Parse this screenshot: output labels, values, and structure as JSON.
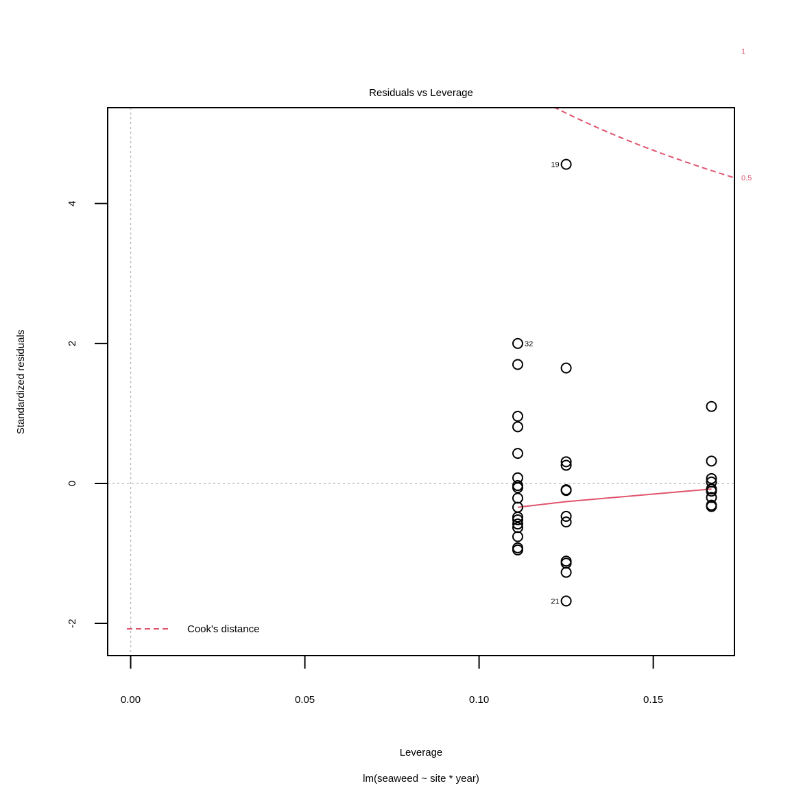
{
  "chart_data": {
    "type": "scatter",
    "title": "Residuals vs Leverage",
    "xlabel": "Leverage",
    "ylabel": "Standardized residuals",
    "subtitle": "lm(seaweed ~ site * year)",
    "xlim": [
      -0.0066,
      0.1733
    ],
    "ylim": [
      -2.46,
      5.37
    ],
    "x_ticks": [
      "0.00",
      "0.05",
      "0.10",
      "0.15"
    ],
    "y_ticks": [
      "-2",
      "0",
      "2",
      "4"
    ],
    "points": [
      {
        "x": 0.1111,
        "y": 2.0,
        "label": "32"
      },
      {
        "x": 0.1111,
        "y": 1.7
      },
      {
        "x": 0.1111,
        "y": 0.96
      },
      {
        "x": 0.1111,
        "y": 0.81
      },
      {
        "x": 0.1111,
        "y": 0.43
      },
      {
        "x": 0.1111,
        "y": 0.08
      },
      {
        "x": 0.1111,
        "y": -0.03
      },
      {
        "x": 0.1111,
        "y": -0.06
      },
      {
        "x": 0.1111,
        "y": -0.21
      },
      {
        "x": 0.1111,
        "y": -0.34
      },
      {
        "x": 0.1111,
        "y": -0.48
      },
      {
        "x": 0.1111,
        "y": -0.52
      },
      {
        "x": 0.1111,
        "y": -0.58
      },
      {
        "x": 0.1111,
        "y": -0.63
      },
      {
        "x": 0.1111,
        "y": -0.76
      },
      {
        "x": 0.1111,
        "y": -0.92
      },
      {
        "x": 0.1111,
        "y": -0.95
      },
      {
        "x": 0.125,
        "y": 4.56,
        "label": "19"
      },
      {
        "x": 0.125,
        "y": 1.65
      },
      {
        "x": 0.125,
        "y": 0.31
      },
      {
        "x": 0.125,
        "y": 0.26
      },
      {
        "x": 0.125,
        "y": -0.09
      },
      {
        "x": 0.125,
        "y": -0.1
      },
      {
        "x": 0.125,
        "y": -0.47
      },
      {
        "x": 0.125,
        "y": -0.55
      },
      {
        "x": 0.125,
        "y": -1.11
      },
      {
        "x": 0.125,
        "y": -1.14
      },
      {
        "x": 0.125,
        "y": -1.27
      },
      {
        "x": 0.125,
        "y": -1.68,
        "label": "21"
      },
      {
        "x": 0.1667,
        "y": 1.1
      },
      {
        "x": 0.1667,
        "y": 0.32
      },
      {
        "x": 0.1667,
        "y": 0.07
      },
      {
        "x": 0.1667,
        "y": 0.02
      },
      {
        "x": 0.1667,
        "y": -0.08
      },
      {
        "x": 0.1667,
        "y": -0.11
      },
      {
        "x": 0.1667,
        "y": -0.2
      },
      {
        "x": 0.1667,
        "y": -0.31
      },
      {
        "x": 0.1667,
        "y": -0.33
      }
    ],
    "smooth_line": {
      "color": "#DF536B",
      "points": [
        [
          0.1111,
          -0.34
        ],
        [
          0.125,
          -0.26
        ],
        [
          0.1667,
          -0.08
        ]
      ]
    },
    "cooks_distance": {
      "color": "#DF536B",
      "p": 8,
      "levels": [
        {
          "level": 0.5,
          "label": "0.5"
        },
        {
          "level": 1,
          "label": "1"
        }
      ]
    },
    "legend": {
      "label": "Cook's distance",
      "position": "bottom-left"
    },
    "reference_lines": {
      "x": 0,
      "y": 0,
      "color": "#BEBEBE"
    }
  }
}
